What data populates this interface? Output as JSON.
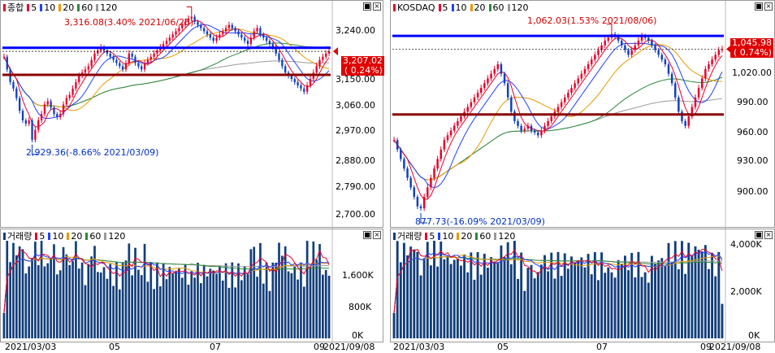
{
  "colors": {
    "up": "#e8002a",
    "down": "#1040c0",
    "ma5": "#e8002a",
    "ma10": "#2040ff",
    "ma20": "#e89a00",
    "ma60": "#2a8a3a",
    "ma120": "#9a9a9a",
    "blue_line": "#0000ff",
    "maroon_line": "#8b0000",
    "volume": "#123e7a"
  },
  "left": {
    "legend": {
      "name": "종합",
      "ma5": "5",
      "ma10": "10",
      "ma20": "20",
      "ma60": "60",
      "ma120": "120"
    },
    "high_annot": "3,316.08(3.40% 2021/06/25)",
    "low_annot": "2,929.36(-8.66% 2021/03/09)",
    "price_tag": {
      "price": "3,207.02",
      "change": "( 0.24%)"
    },
    "yticks": [
      "3,240.00",
      "3,150.00",
      "3,060.00",
      "2,970.00",
      "2,880.00",
      "2,790.00",
      "2,700.00"
    ],
    "vol_legend": {
      "name": "거래량",
      "ma5": "5",
      "ma10": "10",
      "ma20": "20",
      "ma60": "60",
      "ma120": "120"
    },
    "vol_yticks": [
      "1,600K",
      "800K",
      "0K"
    ],
    "xticks": [
      "2021/03/03",
      "05",
      "07",
      "09"
    ],
    "xend": "2021/09/08"
  },
  "right": {
    "legend": {
      "name": "KOSDAQ",
      "ma5": "5",
      "ma10": "10",
      "ma20": "20",
      "ma60": "60",
      "ma120": "120"
    },
    "high_annot": "1,062.03(1.53% 2021/08/06)",
    "low_annot": "877.73(-16.09% 2021/03/09)",
    "price_tag": {
      "price": "1,045.98",
      "change": "( 0.74%)"
    },
    "yticks": [
      "1,020.00",
      "990.00",
      "960.00",
      "930.00",
      "900.00"
    ],
    "vol_legend": {
      "name": "거래량",
      "ma5": "5",
      "ma10": "10",
      "ma20": "20",
      "ma60": "60",
      "ma120": "120"
    },
    "vol_yticks": [
      "4,000K",
      "2,000K",
      "0K"
    ],
    "xticks": [
      "2021/03/03",
      "05",
      "07",
      "09"
    ],
    "xend": "2021/09/08"
  },
  "chart_data": [
    {
      "type": "candlestick",
      "title": "종합",
      "ylim": [
        2660,
        3330
      ],
      "hlines": [
        3218,
        3133
      ],
      "price": [
        3190,
        3150,
        3110,
        3090,
        3060,
        3020,
        2990,
        2980,
        2990,
        2929,
        2960,
        2990,
        3010,
        3040,
        3050,
        3030,
        3010,
        3000,
        3010,
        3040,
        3060,
        3070,
        3090,
        3110,
        3130,
        3140,
        3150,
        3160,
        3180,
        3200,
        3210,
        3220,
        3210,
        3200,
        3190,
        3180,
        3170,
        3160,
        3150,
        3170,
        3200,
        3190,
        3170,
        3160,
        3150,
        3170,
        3180,
        3190,
        3200,
        3210,
        3220,
        3230,
        3240,
        3250,
        3260,
        3270,
        3280,
        3290,
        3300,
        3310,
        3316,
        3300,
        3290,
        3280,
        3270,
        3260,
        3250,
        3240,
        3250,
        3260,
        3270,
        3280,
        3290,
        3280,
        3270,
        3260,
        3250,
        3240,
        3230,
        3250,
        3270,
        3280,
        3260,
        3250,
        3240,
        3230,
        3220,
        3200,
        3180,
        3160,
        3140,
        3130,
        3120,
        3110,
        3100,
        3090,
        3080,
        3100,
        3120,
        3140,
        3160,
        3180,
        3190,
        3200,
        3207
      ]
    },
    {
      "type": "candlestick",
      "title": "KOSDAQ",
      "ylim": [
        860,
        1085
      ],
      "hlines": [
        1060,
        977
      ],
      "price": [
        950,
        940,
        930,
        920,
        910,
        900,
        890,
        880,
        878,
        890,
        900,
        910,
        920,
        930,
        940,
        950,
        955,
        960,
        965,
        970,
        975,
        980,
        985,
        990,
        995,
        1000,
        1005,
        1010,
        1015,
        1020,
        1025,
        1030,
        1020,
        1010,
        995,
        980,
        970,
        965,
        960,
        962,
        965,
        960,
        958,
        955,
        960,
        965,
        970,
        975,
        980,
        985,
        990,
        995,
        1000,
        1005,
        1010,
        1015,
        1020,
        1025,
        1030,
        1035,
        1040,
        1045,
        1050,
        1055,
        1058,
        1062,
        1060,
        1055,
        1050,
        1045,
        1040,
        1045,
        1050,
        1055,
        1060,
        1058,
        1055,
        1050,
        1045,
        1040,
        1035,
        1030,
        1020,
        1010,
        995,
        980,
        970,
        965,
        975,
        985,
        995,
        1005,
        1015,
        1025,
        1030,
        1035,
        1040,
        1045,
        1046
      ]
    }
  ]
}
